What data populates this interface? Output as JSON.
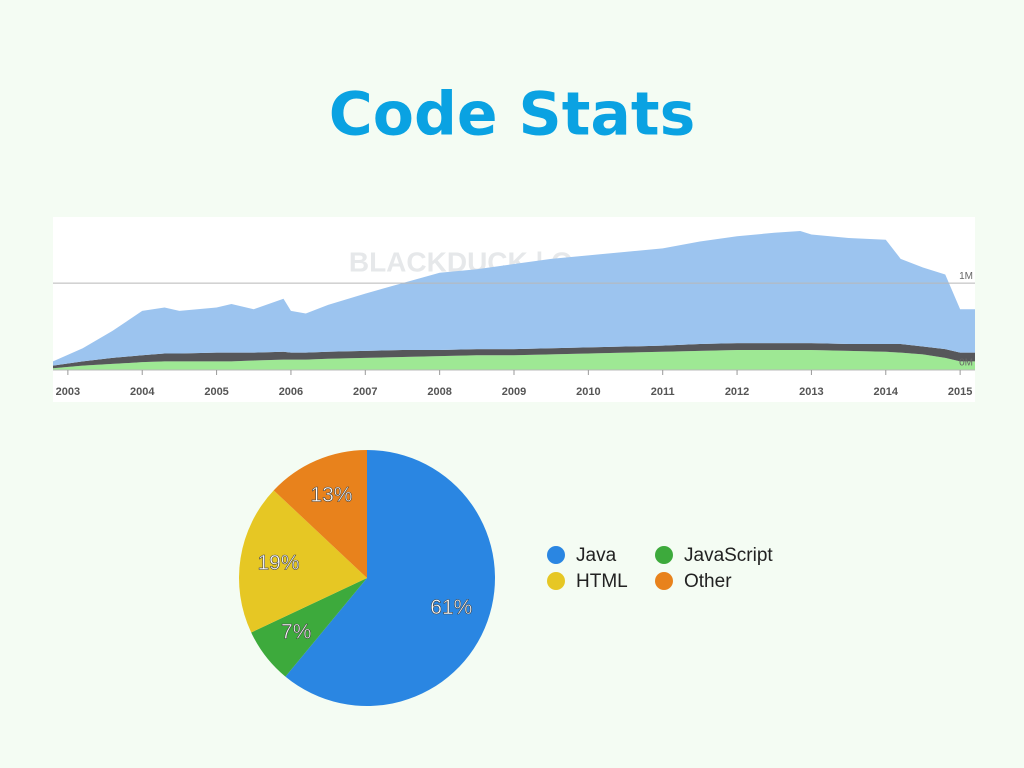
{
  "title": "Code Stats",
  "chart_data": [
    {
      "type": "area",
      "stacked": true,
      "watermark": "BLACKDUCK | Open HUB",
      "x": [
        2002.8,
        2003.2,
        2003.6,
        2004.0,
        2004.3,
        2004.5,
        2005.0,
        2005.2,
        2005.5,
        2005.9,
        2006.0,
        2006.2,
        2006.5,
        2007.0,
        2007.5,
        2008.0,
        2008.5,
        2009.0,
        2009.5,
        2010.0,
        2010.5,
        2011.0,
        2011.5,
        2012.0,
        2012.5,
        2012.85,
        2013.0,
        2013.5,
        2014.0,
        2014.2,
        2014.5,
        2014.8,
        2015.0,
        2015.2
      ],
      "series": [
        {
          "color": "#9ee894",
          "values": [
            0.02,
            0.05,
            0.07,
            0.09,
            0.1,
            0.1,
            0.1,
            0.1,
            0.11,
            0.12,
            0.12,
            0.12,
            0.13,
            0.14,
            0.15,
            0.16,
            0.17,
            0.17,
            0.18,
            0.19,
            0.2,
            0.21,
            0.22,
            0.23,
            0.23,
            0.23,
            0.23,
            0.22,
            0.21,
            0.2,
            0.18,
            0.14,
            0.1,
            0.1
          ]
        },
        {
          "color": "#56575a",
          "values": [
            0.03,
            0.05,
            0.07,
            0.08,
            0.09,
            0.09,
            0.1,
            0.1,
            0.09,
            0.09,
            0.08,
            0.08,
            0.08,
            0.08,
            0.08,
            0.07,
            0.07,
            0.07,
            0.07,
            0.07,
            0.07,
            0.07,
            0.08,
            0.08,
            0.08,
            0.08,
            0.08,
            0.08,
            0.09,
            0.1,
            0.09,
            0.1,
            0.1,
            0.1
          ]
        },
        {
          "color": "#9cc4ef",
          "values": [
            0.05,
            0.15,
            0.31,
            0.51,
            0.53,
            0.49,
            0.52,
            0.56,
            0.5,
            0.61,
            0.48,
            0.45,
            0.54,
            0.66,
            0.77,
            0.89,
            0.92,
            0.98,
            1.03,
            1.06,
            1.09,
            1.12,
            1.18,
            1.23,
            1.27,
            1.29,
            1.25,
            1.22,
            1.2,
            0.98,
            0.91,
            0.86,
            0.5,
            0.5
          ]
        }
      ],
      "xlim": [
        2002.8,
        2015.2
      ],
      "xticks": [
        2003,
        2004,
        2005,
        2006,
        2007,
        2008,
        2009,
        2010,
        2011,
        2012,
        2013,
        2014,
        2015
      ],
      "ylim": [
        0,
        1.75
      ],
      "yticks": [
        {
          "value": 0,
          "label": "0M"
        },
        {
          "value": 1,
          "label": "1M"
        }
      ],
      "grid": true
    },
    {
      "type": "pie",
      "categories": [
        "Java",
        "JavaScript",
        "HTML",
        "Other"
      ],
      "values": [
        61,
        7,
        19,
        13
      ],
      "value_labels": [
        "61%",
        "7%",
        "19%",
        "13%"
      ],
      "colors": [
        "#2a86e2",
        "#3daa3c",
        "#e6c724",
        "#e8821c"
      ],
      "legend": "right"
    }
  ]
}
